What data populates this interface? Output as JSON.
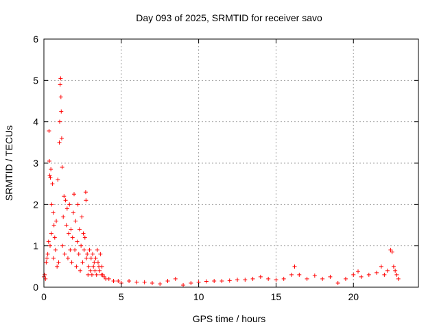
{
  "chart_data": {
    "type": "scatter",
    "title": "Day 093 of 2025, SRMTID for receiver savo",
    "xlabel": "GPS time / hours",
    "ylabel": "SRMTID / TECUs",
    "xlim": [
      0,
      24.2
    ],
    "ylim": [
      0,
      6
    ],
    "xticks": [
      0,
      5,
      10,
      15,
      20
    ],
    "yticks": [
      0,
      1,
      2,
      3,
      4,
      5,
      6
    ],
    "xtick_labels": [
      "0",
      "5",
      "10",
      "15",
      "20"
    ],
    "ytick_labels": [
      "0",
      "1",
      "2",
      "3",
      "4",
      "5",
      "6"
    ],
    "grid": true,
    "marker": "plus",
    "color": "#ff0000",
    "series": [
      {
        "name": "SRMTID",
        "points": [
          [
            0.0,
            0.25
          ],
          [
            0.05,
            0.3
          ],
          [
            0.1,
            0.2
          ],
          [
            0.15,
            0.6
          ],
          [
            0.2,
            0.7
          ],
          [
            0.25,
            0.8
          ],
          [
            0.3,
            1.1
          ],
          [
            0.33,
            3.78
          ],
          [
            0.35,
            3.05
          ],
          [
            0.38,
            2.7
          ],
          [
            0.4,
            1.0
          ],
          [
            0.42,
            2.65
          ],
          [
            0.45,
            2.85
          ],
          [
            0.48,
            1.3
          ],
          [
            0.5,
            2.0
          ],
          [
            0.55,
            2.5
          ],
          [
            0.6,
            1.8
          ],
          [
            0.62,
            0.7
          ],
          [
            0.65,
            1.5
          ],
          [
            0.7,
            1.2
          ],
          [
            0.75,
            0.9
          ],
          [
            0.8,
            1.6
          ],
          [
            0.85,
            0.5
          ],
          [
            0.9,
            2.6
          ],
          [
            0.95,
            0.6
          ],
          [
            1.0,
            3.5
          ],
          [
            1.02,
            4.0
          ],
          [
            1.05,
            4.9
          ],
          [
            1.08,
            5.05
          ],
          [
            1.1,
            4.6
          ],
          [
            1.12,
            4.25
          ],
          [
            1.15,
            3.6
          ],
          [
            1.18,
            2.9
          ],
          [
            1.2,
            1.0
          ],
          [
            1.25,
            1.7
          ],
          [
            1.3,
            2.2
          ],
          [
            1.35,
            0.8
          ],
          [
            1.4,
            2.1
          ],
          [
            1.45,
            1.5
          ],
          [
            1.5,
            1.9
          ],
          [
            1.55,
            0.7
          ],
          [
            1.6,
            1.3
          ],
          [
            1.65,
            2.0
          ],
          [
            1.7,
            0.9
          ],
          [
            1.75,
            1.4
          ],
          [
            1.8,
            0.6
          ],
          [
            1.85,
            1.2
          ],
          [
            1.9,
            1.8
          ],
          [
            1.95,
            2.25
          ],
          [
            2.0,
            0.9
          ],
          [
            2.05,
            1.6
          ],
          [
            2.1,
            0.5
          ],
          [
            2.15,
            1.1
          ],
          [
            2.2,
            2.0
          ],
          [
            2.25,
            0.8
          ],
          [
            2.3,
            1.4
          ],
          [
            2.35,
            0.4
          ],
          [
            2.4,
            1.0
          ],
          [
            2.45,
            1.7
          ],
          [
            2.5,
            0.6
          ],
          [
            2.55,
            1.3
          ],
          [
            2.6,
            0.9
          ],
          [
            2.65,
            1.2
          ],
          [
            2.7,
            2.3
          ],
          [
            2.72,
            2.1
          ],
          [
            2.75,
            0.7
          ],
          [
            2.8,
            0.8
          ],
          [
            2.85,
            0.3
          ],
          [
            2.9,
            0.5
          ],
          [
            2.95,
            0.9
          ],
          [
            3.0,
            0.4
          ],
          [
            3.05,
            0.7
          ],
          [
            3.1,
            0.3
          ],
          [
            3.15,
            0.8
          ],
          [
            3.2,
            0.5
          ],
          [
            3.25,
            0.6
          ],
          [
            3.3,
            0.4
          ],
          [
            3.35,
            0.7
          ],
          [
            3.4,
            0.3
          ],
          [
            3.45,
            0.9
          ],
          [
            3.5,
            0.6
          ],
          [
            3.55,
            0.5
          ],
          [
            3.6,
            0.4
          ],
          [
            3.65,
            0.8
          ],
          [
            3.7,
            0.3
          ],
          [
            3.75,
            0.5
          ],
          [
            3.8,
            0.3
          ],
          [
            3.9,
            0.25
          ],
          [
            4.0,
            0.2
          ],
          [
            4.2,
            0.2
          ],
          [
            4.5,
            0.15
          ],
          [
            4.8,
            0.15
          ],
          [
            5.0,
            0.1
          ],
          [
            5.5,
            0.15
          ],
          [
            6.0,
            0.12
          ],
          [
            6.5,
            0.12
          ],
          [
            7.0,
            0.1
          ],
          [
            7.5,
            0.08
          ],
          [
            8.0,
            0.15
          ],
          [
            8.5,
            0.2
          ],
          [
            9.0,
            0.05
          ],
          [
            9.5,
            0.1
          ],
          [
            10.0,
            0.12
          ],
          [
            10.5,
            0.14
          ],
          [
            11.0,
            0.15
          ],
          [
            11.5,
            0.15
          ],
          [
            12.0,
            0.16
          ],
          [
            12.5,
            0.18
          ],
          [
            13.0,
            0.18
          ],
          [
            13.5,
            0.2
          ],
          [
            14.0,
            0.25
          ],
          [
            14.5,
            0.2
          ],
          [
            15.0,
            0.18
          ],
          [
            15.5,
            0.2
          ],
          [
            16.0,
            0.3
          ],
          [
            16.2,
            0.5
          ],
          [
            16.5,
            0.3
          ],
          [
            17.0,
            0.2
          ],
          [
            17.5,
            0.28
          ],
          [
            18.0,
            0.2
          ],
          [
            18.5,
            0.25
          ],
          [
            19.0,
            0.1
          ],
          [
            19.5,
            0.2
          ],
          [
            20.0,
            0.3
          ],
          [
            20.3,
            0.38
          ],
          [
            20.5,
            0.25
          ],
          [
            21.0,
            0.3
          ],
          [
            21.5,
            0.35
          ],
          [
            21.8,
            0.5
          ],
          [
            22.0,
            0.3
          ],
          [
            22.2,
            0.4
          ],
          [
            22.4,
            0.9
          ],
          [
            22.5,
            0.85
          ],
          [
            22.6,
            0.5
          ],
          [
            22.7,
            0.4
          ],
          [
            22.8,
            0.3
          ],
          [
            22.9,
            0.2
          ]
        ]
      }
    ]
  }
}
